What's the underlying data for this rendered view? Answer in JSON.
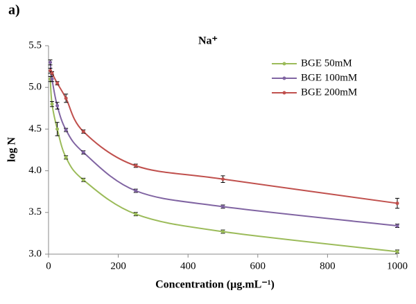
{
  "panel_label": "a)",
  "chart_data": {
    "type": "line",
    "title": "Na⁺",
    "x_label": "Concentration (µg.mL⁻¹)",
    "y_label": "log N",
    "x": [
      5,
      10,
      25,
      50,
      100,
      250,
      500,
      1000
    ],
    "series": [
      {
        "name": "BGE 50mM",
        "color": "#9bbb59",
        "values": [
          5.1,
          4.8,
          4.5,
          4.16,
          3.89,
          3.48,
          3.27,
          3.03
        ],
        "errors": [
          0.03,
          0.03,
          0.08,
          0.02,
          0.02,
          0.02,
          0.02,
          0.02
        ]
      },
      {
        "name": "BGE 100mM",
        "color": "#8064a2",
        "values": [
          5.3,
          5.1,
          4.78,
          4.49,
          4.22,
          3.76,
          3.57,
          3.34
        ],
        "errors": [
          0.03,
          0.03,
          0.04,
          0.02,
          0.02,
          0.02,
          0.02,
          0.02
        ]
      },
      {
        "name": "BGE 200mM",
        "color": "#c0504d",
        "values": [
          5.2,
          5.17,
          5.05,
          4.87,
          4.47,
          4.06,
          3.9,
          3.61
        ],
        "errors": [
          0.03,
          0.02,
          0.02,
          0.05,
          0.02,
          0.02,
          0.04,
          0.06
        ]
      }
    ],
    "xlim": [
      0,
      1000
    ],
    "xticks": [
      0,
      200,
      400,
      600,
      800,
      1000
    ],
    "ylim": [
      3,
      5.5
    ],
    "yticks": [
      {
        "value": 3,
        "label": "3.0"
      },
      3.5,
      {
        "value": 4,
        "label": "4.0"
      },
      4.5,
      {
        "value": 5,
        "label": "5.0"
      },
      5.5
    ],
    "legend": "upper right",
    "grid": false
  }
}
